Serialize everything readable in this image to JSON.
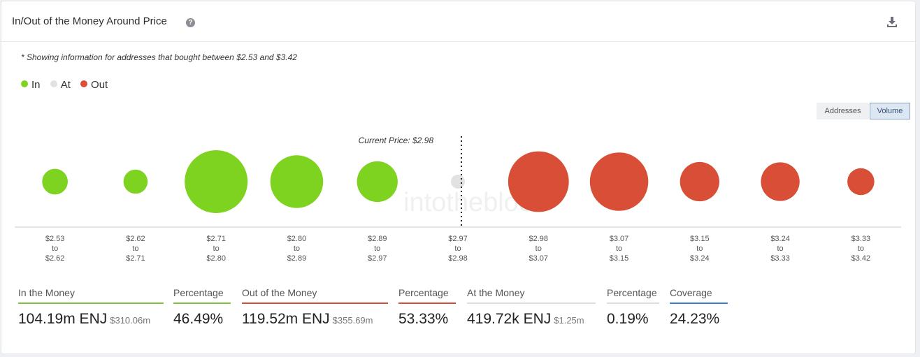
{
  "header": {
    "title": "In/Out of the Money Around Price",
    "help_icon": "question-circle-icon",
    "download_icon": "download-icon"
  },
  "note": "* Showing information for addresses that bought between $2.53 and $3.42",
  "legend": [
    {
      "label": "In",
      "color": "#7ed321"
    },
    {
      "label": "At",
      "color": "#e2e2e2"
    },
    {
      "label": "Out",
      "color": "#d94e36"
    }
  ],
  "toggles": {
    "addresses": "Addresses",
    "volume": "Volume",
    "active": "Volume"
  },
  "watermark": "intotheblock",
  "chart_data": {
    "type": "scatter",
    "variant": "bubble",
    "current_price_label": "Current Price: $2.98",
    "current_price_between_index": 5,
    "colors": {
      "in": "#7ed321",
      "at": "#e2e2e2",
      "out": "#d94e36"
    },
    "bins": [
      {
        "from": "$2.53",
        "to": "$2.62",
        "status": "in",
        "relative_volume": 0.0168
      },
      {
        "from": "$2.62",
        "to": "$2.71",
        "status": "in",
        "relative_volume": 0.0149
      },
      {
        "from": "$2.71",
        "to": "$2.80",
        "status": "in",
        "relative_volume": 0.101
      },
      {
        "from": "$2.80",
        "to": "$2.89",
        "status": "in",
        "relative_volume": 0.0711
      },
      {
        "from": "$2.89",
        "to": "$2.97",
        "status": "in",
        "relative_volume": 0.0424
      },
      {
        "from": "$2.97",
        "to": "$2.98",
        "status": "at",
        "relative_volume": 0.005
      },
      {
        "from": "$2.98",
        "to": "$3.07",
        "status": "out",
        "relative_volume": 0.094
      },
      {
        "from": "$3.07",
        "to": "$3.15",
        "status": "out",
        "relative_volume": 0.0869
      },
      {
        "from": "$3.15",
        "to": "$3.24",
        "status": "out",
        "relative_volume": 0.0395
      },
      {
        "from": "$3.24",
        "to": "$3.33",
        "status": "out",
        "relative_volume": 0.0382
      },
      {
        "from": "$3.33",
        "to": "$3.42",
        "status": "out",
        "relative_volume": 0.0185
      }
    ],
    "tick_connector": "to"
  },
  "summary": [
    {
      "label": "In the Money",
      "value": "104.19m ENJ",
      "sub": "$310.06m",
      "underline": "green"
    },
    {
      "label": "Percentage",
      "value": "46.49%",
      "sub": "",
      "underline": "green"
    },
    {
      "label": "Out of the Money",
      "value": "119.52m ENJ",
      "sub": "$355.69m",
      "underline": "red"
    },
    {
      "label": "Percentage",
      "value": "53.33%",
      "sub": "",
      "underline": "red"
    },
    {
      "label": "At the Money",
      "value": "419.72k ENJ",
      "sub": "$1.25m",
      "underline": "gray"
    },
    {
      "label": "Percentage",
      "value": "0.19%",
      "sub": "",
      "underline": "gray"
    },
    {
      "label": "Coverage",
      "value": "24.23%",
      "sub": "",
      "underline": "blue"
    }
  ]
}
